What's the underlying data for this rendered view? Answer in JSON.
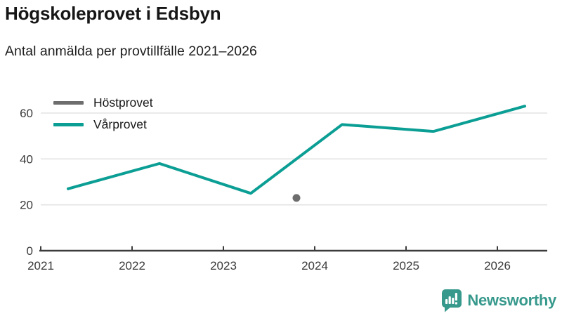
{
  "chart_data": {
    "type": "line",
    "title": "Högskoleprovet i Edsbyn",
    "subtitle": "Antal anmälda per provtillfälle 2021–2026",
    "xlabel": "",
    "ylabel": "",
    "ylim": [
      0,
      65
    ],
    "yticks": [
      0,
      20,
      40,
      60
    ],
    "xticks": [
      2021,
      2022,
      2023,
      2024,
      2025,
      2026
    ],
    "xlim": [
      2021,
      2026.55
    ],
    "grid": "horizontal",
    "legend_position": "top-left-inside",
    "series": [
      {
        "name": "Höstprovet",
        "color": "#6d6d6d",
        "marker": "circle",
        "x": [
          2023.8
        ],
        "values": [
          23
        ]
      },
      {
        "name": "Vårprovet",
        "color": "#0b9e94",
        "marker": "none",
        "x": [
          2021.3,
          2022.3,
          2023.3,
          2024.3,
          2025.3,
          2026.3
        ],
        "values": [
          27,
          38,
          25,
          55,
          52,
          63
        ]
      }
    ]
  },
  "footer": {
    "brand": "Newsworthy",
    "brand_color": "#37998c",
    "logo_icon": "bar-chart-speech-bubble"
  },
  "colors": {
    "grid": "#e3e3e3",
    "axis": "#3c3c3c",
    "tick_text": "#3a3a3a",
    "title_text": "#161616",
    "accent_teal": "#0b9e94",
    "neutral_gray": "#6d6d6d"
  }
}
